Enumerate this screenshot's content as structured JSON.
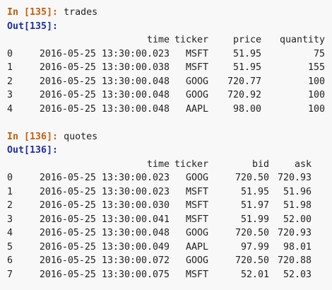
{
  "cells": [
    {
      "in_prompt": "In [135]:",
      "code": "trades",
      "out_prompt": "Out[135]:",
      "columns": [
        "time",
        "ticker",
        "price",
        "quantity"
      ],
      "rows": [
        {
          "index": "0",
          "values": [
            "2016-05-25 13:30:00.023",
            "MSFT",
            "51.95",
            "75"
          ]
        },
        {
          "index": "1",
          "values": [
            "2016-05-25 13:30:00.038",
            "MSFT",
            "51.95",
            "155"
          ]
        },
        {
          "index": "2",
          "values": [
            "2016-05-25 13:30:00.048",
            "GOOG",
            "720.77",
            "100"
          ]
        },
        {
          "index": "3",
          "values": [
            "2016-05-25 13:30:00.048",
            "GOOG",
            "720.92",
            "100"
          ]
        },
        {
          "index": "4",
          "values": [
            "2016-05-25 13:30:00.048",
            "AAPL",
            "98.00",
            "100"
          ]
        }
      ]
    },
    {
      "in_prompt": "In [136]:",
      "code": "quotes",
      "out_prompt": "Out[136]:",
      "columns": [
        "time",
        "ticker",
        "bid",
        "ask"
      ],
      "rows": [
        {
          "index": "0",
          "values": [
            "2016-05-25 13:30:00.023",
            "GOOG",
            "720.50",
            "720.93"
          ]
        },
        {
          "index": "1",
          "values": [
            "2016-05-25 13:30:00.023",
            "MSFT",
            "51.95",
            "51.96"
          ]
        },
        {
          "index": "2",
          "values": [
            "2016-05-25 13:30:00.030",
            "MSFT",
            "51.97",
            "51.98"
          ]
        },
        {
          "index": "3",
          "values": [
            "2016-05-25 13:30:00.041",
            "MSFT",
            "51.99",
            "52.00"
          ]
        },
        {
          "index": "4",
          "values": [
            "2016-05-25 13:30:00.048",
            "GOOG",
            "720.50",
            "720.93"
          ]
        },
        {
          "index": "5",
          "values": [
            "2016-05-25 13:30:00.049",
            "AAPL",
            "97.99",
            "98.01"
          ]
        },
        {
          "index": "6",
          "values": [
            "2016-05-25 13:30:00.072",
            "GOOG",
            "720.50",
            "720.88"
          ]
        },
        {
          "index": "7",
          "values": [
            "2016-05-25 13:30:00.075",
            "MSFT",
            "52.01",
            "52.03"
          ]
        }
      ]
    }
  ]
}
